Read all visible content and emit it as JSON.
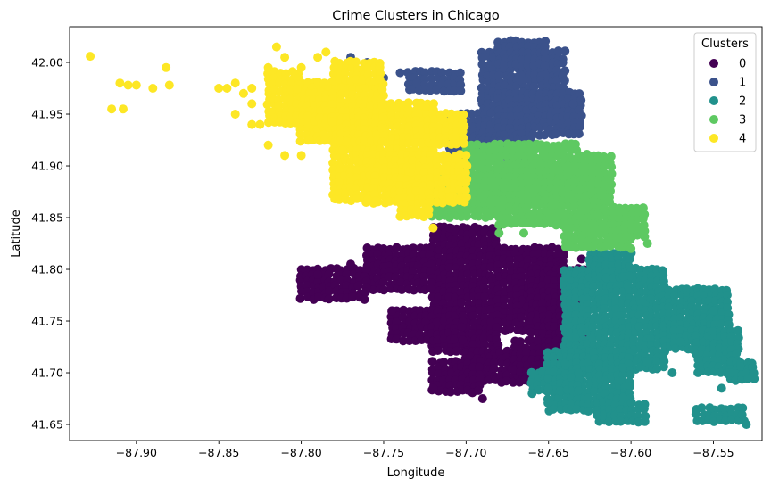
{
  "chart_data": {
    "type": "scatter",
    "title": "Crime Clusters in Chicago",
    "xlabel": "Longitude",
    "ylabel": "Latitude",
    "xlim": [
      -87.9405,
      -87.5205
    ],
    "ylim": [
      41.6345,
      42.0345
    ],
    "xticks": [
      -87.9,
      -87.85,
      -87.8,
      -87.75,
      -87.7,
      -87.65,
      -87.6,
      -87.55
    ],
    "yticks": [
      41.65,
      41.7,
      41.75,
      41.8,
      41.85,
      41.9,
      41.95,
      42.0
    ],
    "xtick_labels": [
      "−87.90",
      "−87.85",
      "−87.80",
      "−87.75",
      "−87.70",
      "−87.65",
      "−87.60",
      "−87.55"
    ],
    "ytick_labels": [
      "41.65",
      "41.70",
      "41.75",
      "41.80",
      "41.85",
      "41.90",
      "41.95",
      "42.00"
    ],
    "grid": false,
    "legend": {
      "title": "Clusters",
      "position": "top-right"
    },
    "series": [
      {
        "name": "0",
        "color": "#440154",
        "regions": [
          {
            "x": [
              -87.72,
              -87.68
            ],
            "y": [
              41.76,
              41.84
            ]
          },
          {
            "x": [
              -87.68,
              -87.64
            ],
            "y": [
              41.74,
              41.82
            ]
          },
          {
            "x": [
              -87.66,
              -87.625
            ],
            "y": [
              41.73,
              41.8
            ]
          },
          {
            "x": [
              -87.76,
              -87.72
            ],
            "y": [
              41.78,
              41.82
            ]
          },
          {
            "x": [
              -87.8,
              -87.76
            ],
            "y": [
              41.77,
              41.8
            ]
          },
          {
            "x": [
              -87.72,
              -87.68
            ],
            "y": [
              41.72,
              41.76
            ]
          },
          {
            "x": [
              -87.7,
              -87.66
            ],
            "y": [
              41.69,
              41.72
            ]
          },
          {
            "x": [
              -87.72,
              -87.69
            ],
            "y": [
              41.68,
              41.71
            ]
          },
          {
            "x": [
              -87.745,
              -87.7
            ],
            "y": [
              41.73,
              41.76
            ]
          },
          {
            "x": [
              -87.67,
              -87.64
            ],
            "y": [
              41.7,
              41.73
            ]
          }
        ],
        "points": [
          [
            -87.77,
            41.805
          ],
          [
            -87.64,
            41.79
          ],
          [
            -87.63,
            41.81
          ],
          [
            -87.745,
            41.76
          ],
          [
            -87.69,
            41.675
          ],
          [
            -87.72,
            41.685
          ],
          [
            -87.71,
            41.84
          ],
          [
            -87.79,
            41.795
          ]
        ]
      },
      {
        "name": "1",
        "color": "#3b528b",
        "regions": [
          {
            "x": [
              -87.69,
              -87.64
            ],
            "y": [
              41.95,
              42.01
            ]
          },
          {
            "x": [
              -87.71,
              -87.66
            ],
            "y": [
              41.91,
              41.95
            ]
          },
          {
            "x": [
              -87.68,
              -87.63
            ],
            "y": [
              41.93,
              41.97
            ]
          },
          {
            "x": [
              -87.735,
              -87.7
            ],
            "y": [
              41.97,
              41.99
            ]
          },
          {
            "x": [
              -87.68,
              -87.65
            ],
            "y": [
              41.995,
              42.02
            ]
          },
          {
            "x": [
              -87.7,
              -87.66
            ],
            "y": [
              41.905,
              41.925
            ]
          }
        ],
        "points": [
          [
            -87.77,
            42.005
          ],
          [
            -87.76,
            42.0
          ],
          [
            -87.75,
            41.985
          ],
          [
            -87.635,
            41.96
          ],
          [
            -87.74,
            41.99
          ],
          [
            -87.73,
            41.98
          ]
        ]
      },
      {
        "name": "2",
        "color": "#21918c",
        "regions": [
          {
            "x": [
              -87.64,
              -87.58
            ],
            "y": [
              41.7,
              41.8
            ]
          },
          {
            "x": [
              -87.58,
              -87.54
            ],
            "y": [
              41.72,
              41.78
            ]
          },
          {
            "x": [
              -87.65,
              -87.6
            ],
            "y": [
              41.66,
              41.72
            ]
          },
          {
            "x": [
              -87.56,
              -87.535
            ],
            "y": [
              41.7,
              41.74
            ]
          },
          {
            "x": [
              -87.62,
              -87.59
            ],
            "y": [
              41.65,
              41.67
            ]
          },
          {
            "x": [
              -87.56,
              -87.53
            ],
            "y": [
              41.65,
              41.665
            ]
          },
          {
            "x": [
              -87.54,
              -87.525
            ],
            "y": [
              41.69,
              41.71
            ]
          },
          {
            "x": [
              -87.66,
              -87.63
            ],
            "y": [
              41.68,
              41.7
            ]
          },
          {
            "x": [
              -87.625,
              -87.6
            ],
            "y": [
              41.79,
              41.815
            ]
          }
        ],
        "points": [
          [
            -87.57,
            41.73
          ],
          [
            -87.55,
            41.76
          ],
          [
            -87.54,
            41.7
          ],
          [
            -87.53,
            41.65
          ],
          [
            -87.605,
            41.705
          ],
          [
            -87.59,
            41.71
          ],
          [
            -87.65,
            41.685
          ],
          [
            -87.66,
            41.68
          ],
          [
            -87.545,
            41.685
          ],
          [
            -87.575,
            41.7
          ]
        ]
      },
      {
        "name": "3",
        "color": "#5ec962",
        "regions": [
          {
            "x": [
              -87.7,
              -87.63
            ],
            "y": [
              41.86,
              41.92
            ]
          },
          {
            "x": [
              -87.68,
              -87.62
            ],
            "y": [
              41.84,
              41.9
            ]
          },
          {
            "x": [
              -87.63,
              -87.61
            ],
            "y": [
              41.85,
              41.91
            ]
          },
          {
            "x": [
              -87.64,
              -87.6
            ],
            "y": [
              41.82,
              41.85
            ]
          },
          {
            "x": [
              -87.72,
              -87.68
            ],
            "y": [
              41.85,
              41.89
            ]
          },
          {
            "x": [
              -87.61,
              -87.59
            ],
            "y": [
              41.83,
              41.86
            ]
          }
        ],
        "points": [
          [
            -87.71,
            41.85
          ],
          [
            -87.73,
            41.855
          ],
          [
            -87.59,
            41.825
          ],
          [
            -87.6,
            41.82
          ],
          [
            -87.665,
            41.835
          ],
          [
            -87.68,
            41.835
          ]
        ]
      },
      {
        "name": "4",
        "color": "#fde725",
        "regions": [
          {
            "x": [
              -87.78,
              -87.72
            ],
            "y": [
              41.88,
              41.96
            ]
          },
          {
            "x": [
              -87.76,
              -87.7
            ],
            "y": [
              41.86,
              41.91
            ]
          },
          {
            "x": [
              -87.8,
              -87.75
            ],
            "y": [
              41.92,
              41.98
            ]
          },
          {
            "x": [
              -87.73,
              -87.7
            ],
            "y": [
              41.92,
              41.95
            ]
          },
          {
            "x": [
              -87.82,
              -87.78
            ],
            "y": [
              41.94,
              41.97
            ]
          },
          {
            "x": [
              -87.78,
              -87.75
            ],
            "y": [
              41.98,
              42.0
            ]
          },
          {
            "x": [
              -87.82,
              -87.8
            ],
            "y": [
              41.97,
              41.99
            ]
          },
          {
            "x": [
              -87.74,
              -87.72
            ],
            "y": [
              41.85,
              41.88
            ]
          },
          {
            "x": [
              -87.78,
              -87.755
            ],
            "y": [
              41.865,
              41.895
            ]
          }
        ],
        "points": [
          [
            -87.928,
            42.006
          ],
          [
            -87.915,
            41.955
          ],
          [
            -87.908,
            41.955
          ],
          [
            -87.91,
            41.98
          ],
          [
            -87.905,
            41.978
          ],
          [
            -87.9,
            41.978
          ],
          [
            -87.89,
            41.975
          ],
          [
            -87.882,
            41.995
          ],
          [
            -87.88,
            41.978
          ],
          [
            -87.845,
            41.975
          ],
          [
            -87.84,
            41.98
          ],
          [
            -87.835,
            41.97
          ],
          [
            -87.83,
            41.96
          ],
          [
            -87.83,
            41.94
          ],
          [
            -87.825,
            41.94
          ],
          [
            -87.82,
            41.995
          ],
          [
            -87.815,
            42.015
          ],
          [
            -87.81,
            42.005
          ],
          [
            -87.8,
            41.995
          ],
          [
            -87.79,
            42.005
          ],
          [
            -87.785,
            42.01
          ],
          [
            -87.78,
            41.995
          ],
          [
            -87.775,
            41.915
          ],
          [
            -87.795,
            41.925
          ],
          [
            -87.8,
            41.91
          ],
          [
            -87.81,
            41.91
          ],
          [
            -87.82,
            41.92
          ],
          [
            -87.84,
            41.95
          ],
          [
            -87.85,
            41.975
          ],
          [
            -87.83,
            41.975
          ],
          [
            -87.72,
            41.84
          ],
          [
            -87.71,
            41.87
          ]
        ]
      }
    ]
  }
}
